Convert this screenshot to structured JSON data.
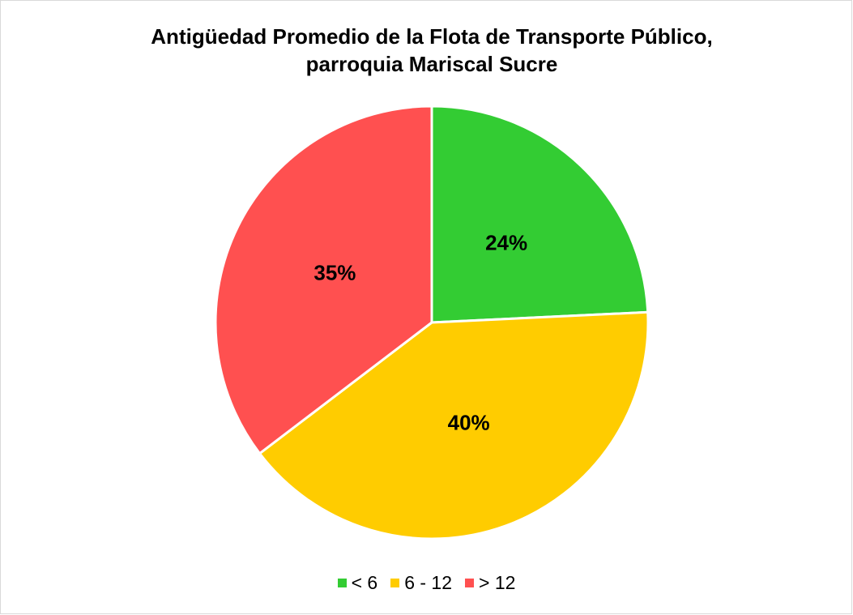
{
  "chart_data": {
    "type": "pie",
    "title": "Antigüedad Promedio de la Flota de Transporte Público, parroquia Mariscal Sucre",
    "categories": [
      "< 6",
      "6 - 12",
      "> 12"
    ],
    "values": [
      24,
      40,
      35
    ],
    "value_labels": [
      "24%",
      "40%",
      "35%"
    ],
    "colors": [
      "#33cc33",
      "#ffcc00",
      "#ff5050"
    ],
    "legend": "bottom"
  }
}
